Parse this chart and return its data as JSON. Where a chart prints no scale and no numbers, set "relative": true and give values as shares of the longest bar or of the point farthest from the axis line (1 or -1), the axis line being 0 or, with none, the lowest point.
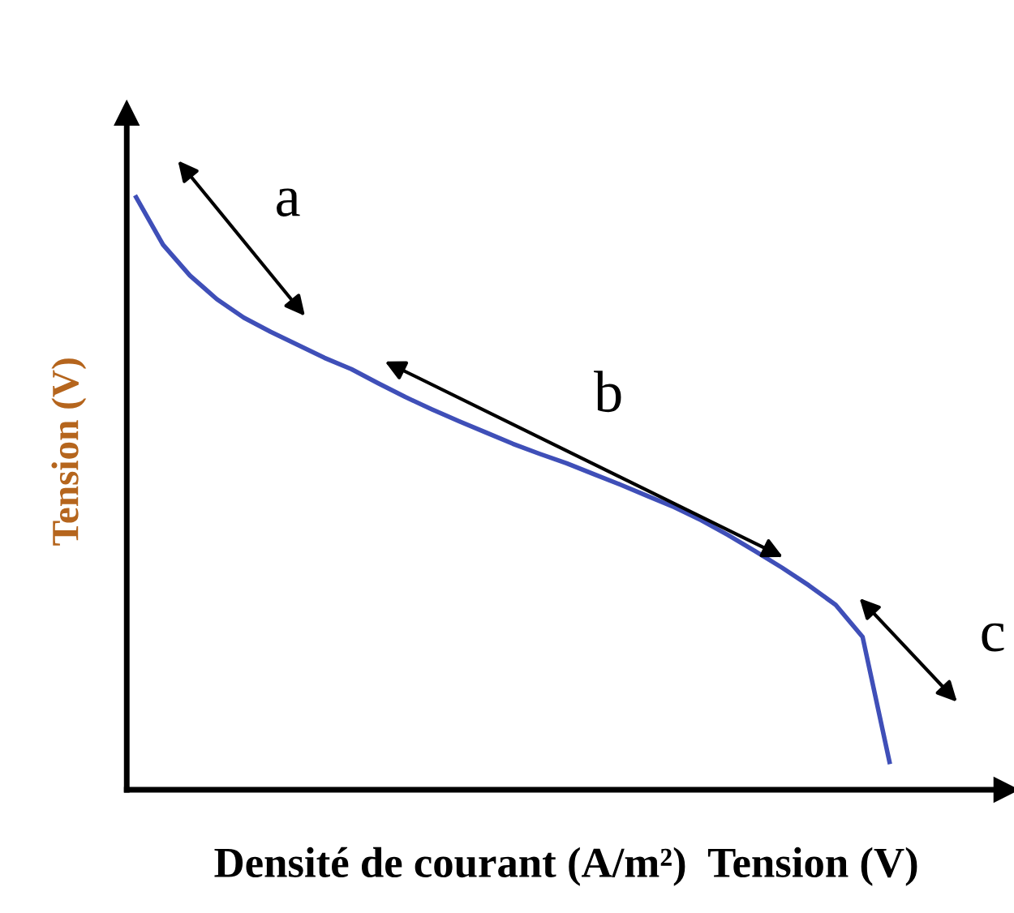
{
  "chart_data": {
    "type": "line",
    "relative": true,
    "xlabel": "Densité de courant (A/m²)  Tension (V)",
    "ylabel": "Tension (V)",
    "categories": [
      null,
      null,
      null,
      null,
      null,
      null,
      null,
      null,
      null,
      null,
      null,
      null,
      null,
      null,
      null,
      null,
      null,
      null,
      null,
      null,
      null,
      null,
      null,
      null,
      null,
      null,
      null,
      null,
      null
    ],
    "series": [
      {
        "color": "#3f4fb8",
        "values": [
          1.0,
          0.92,
          0.868,
          0.828,
          0.797,
          0.773,
          0.751,
          0.729,
          0.71,
          0.686,
          0.663,
          0.642,
          0.622,
          0.603,
          0.584,
          0.567,
          0.551,
          0.533,
          0.515,
          0.496,
          0.477,
          0.455,
          0.43,
          0.403,
          0.375,
          0.345,
          0.312,
          0.258,
          0.047
        ]
      }
    ],
    "annotations": [
      "a",
      "b",
      "c"
    ],
    "legend": false,
    "marker": "none",
    "line_style": "solid"
  }
}
